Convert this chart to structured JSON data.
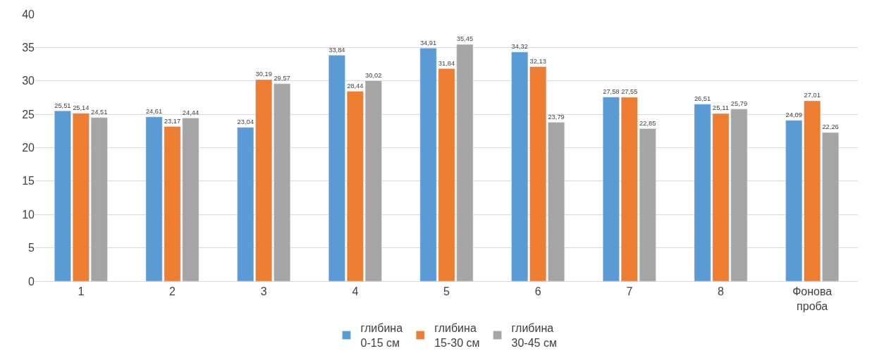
{
  "chart_data": {
    "type": "bar",
    "categories": [
      "1",
      "2",
      "3",
      "4",
      "5",
      "6",
      "7",
      "8",
      "Фонова проба"
    ],
    "series": [
      {
        "name": "глибина 0-15 см",
        "color": "#5b9bd5",
        "values": [
          25.51,
          24.61,
          23.04,
          33.84,
          34.91,
          34.32,
          27.58,
          26.51,
          24.09
        ],
        "value_labels": [
          "25,51",
          "24,61",
          "23,04",
          "33,84",
          "34,91",
          "34,32",
          "27,58",
          "26,51",
          "24,09"
        ]
      },
      {
        "name": "глибина 15-30 см",
        "color": "#ed7d31",
        "values": [
          25.14,
          23.17,
          30.19,
          28.44,
          31.84,
          32.13,
          27.55,
          25.11,
          27.01
        ],
        "value_labels": [
          "25,14",
          "23,17",
          "30,19",
          "28,44",
          "31,84",
          "32,13",
          "27,55",
          "25,11",
          "27,01"
        ]
      },
      {
        "name": "глибина 30-45 см",
        "color": "#a5a5a5",
        "values": [
          24.51,
          24.44,
          29.57,
          30.02,
          35.45,
          23.79,
          22.85,
          25.79,
          22.26
        ],
        "value_labels": [
          "24,51",
          "24,44",
          "29,57",
          "30,02",
          "35,45",
          "23,79",
          "22,85",
          "25,79",
          "22,26"
        ]
      }
    ],
    "ylim": [
      0,
      40
    ],
    "yticks": [
      0,
      5,
      10,
      15,
      20,
      25,
      30,
      35,
      40
    ],
    "grid": "y",
    "legend": "bottom"
  }
}
